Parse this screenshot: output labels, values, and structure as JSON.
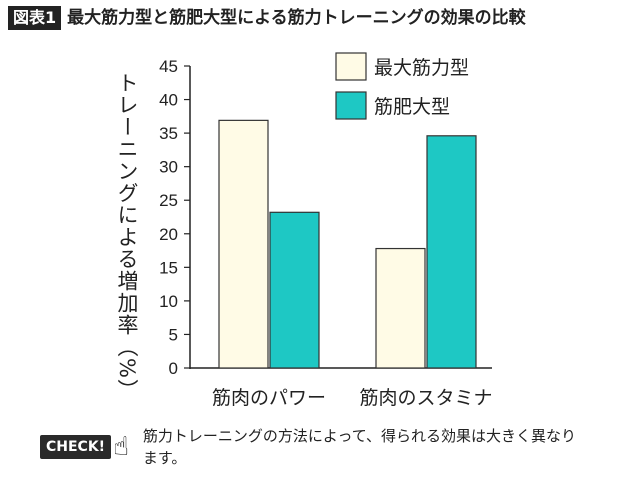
{
  "figure_label": "図表1",
  "title": "最大筋力型と筋肥大型による筋力トレーニングの効果の比較",
  "chart_data": {
    "type": "bar",
    "title": "最大筋力型と筋肥大型による筋力トレーニングの効果の比較",
    "categories": [
      "筋肉のパワー",
      "筋肉のスタミナ"
    ],
    "series": [
      {
        "name": "最大筋力型",
        "values": [
          36.9,
          17.8
        ],
        "color": "#fffbe6"
      },
      {
        "name": "筋肥大型",
        "values": [
          23.2,
          34.6
        ],
        "color": "#1ec8c4"
      }
    ],
    "xlabel": "",
    "ylabel": "トレーニングによる増加率（%）",
    "ylim": [
      0,
      45
    ],
    "yticks": [
      "0",
      "5",
      "10",
      "15",
      "20",
      "25",
      "30",
      "35",
      "40",
      "45"
    ],
    "grid": false,
    "legend": "top-right"
  },
  "footer": {
    "badge": "CHECK!",
    "note": "筋力トレーニングの方法によって、得られる効果は大きく異なります。"
  }
}
